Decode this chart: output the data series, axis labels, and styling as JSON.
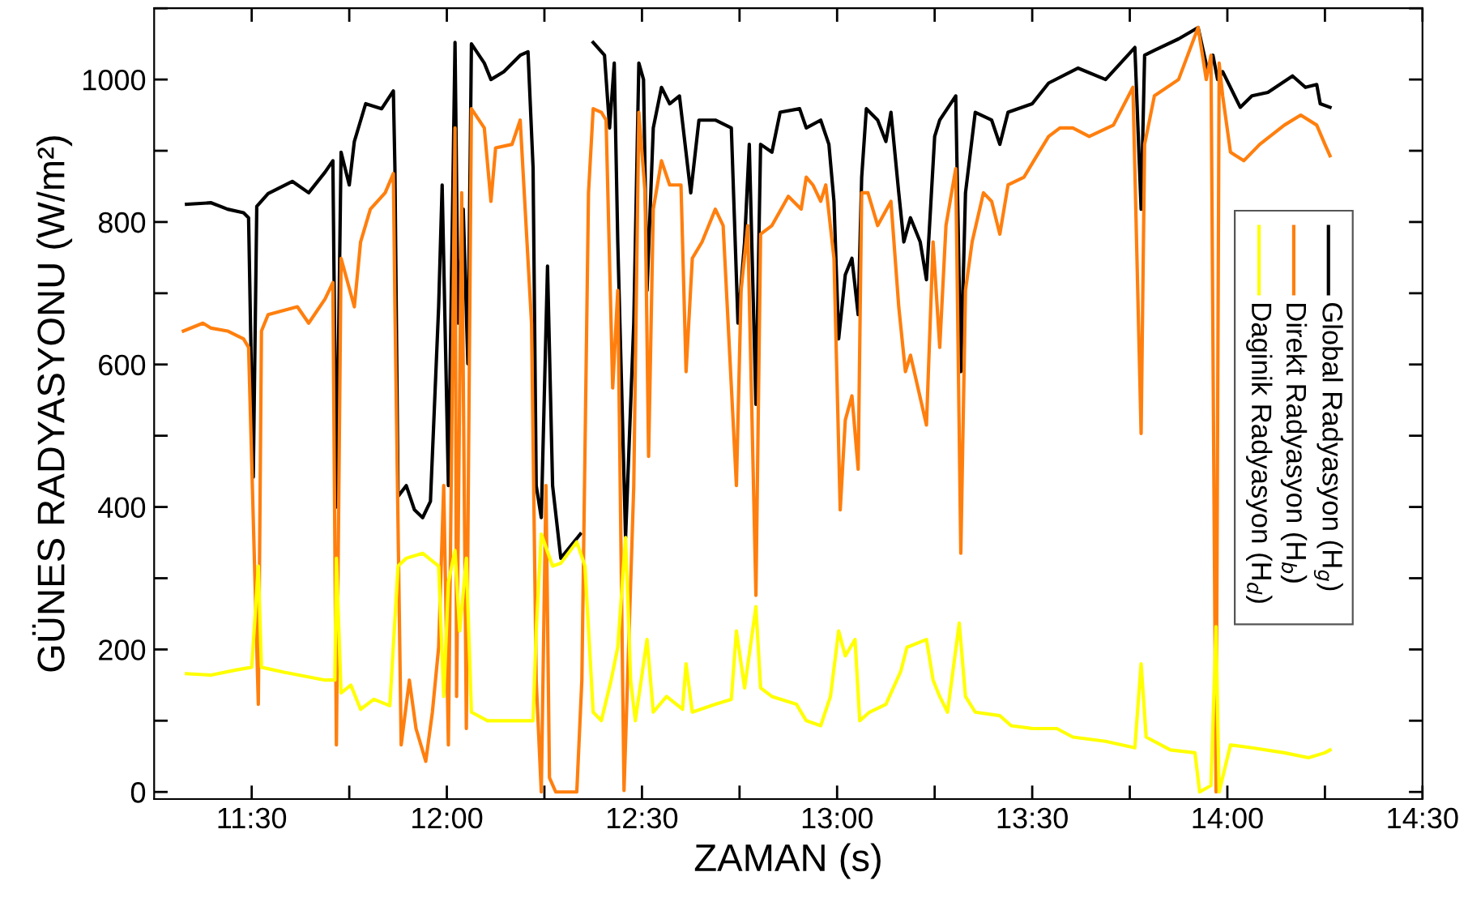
{
  "chart_data": {
    "type": "line",
    "xlabel": "ZAMAN (s)",
    "ylabel": "GÜNES RADYASYONU (W/m²)",
    "xlim": [
      11.25,
      14.5
    ],
    "ylim": [
      -10,
      1100
    ],
    "xticks": [
      {
        "value": 11.5,
        "label": "11:30"
      },
      {
        "value": 11.75,
        "label": null
      },
      {
        "value": 12,
        "label": "12:00"
      },
      {
        "value": 12.25,
        "label": null
      },
      {
        "value": 12.5,
        "label": "12:30"
      },
      {
        "value": 12.75,
        "label": null
      },
      {
        "value": 13,
        "label": "13:00"
      },
      {
        "value": 13.25,
        "label": null
      },
      {
        "value": 13.5,
        "label": "13:30"
      },
      {
        "value": 13.75,
        "label": null
      },
      {
        "value": 14,
        "label": "14:00"
      },
      {
        "value": 14.25,
        "label": null
      },
      {
        "value": 14.5,
        "label": "14:30"
      }
    ],
    "yticks": [
      0,
      {
        "value": 100,
        "label": null
      },
      200,
      {
        "value": 300,
        "label": null
      },
      400,
      {
        "value": 500,
        "label": null
      },
      600,
      {
        "value": 700,
        "label": null
      },
      800,
      {
        "value": 900,
        "label": null
      },
      1000,
      {
        "value": 1100,
        "label": null
      }
    ],
    "grid": false,
    "legend": "right",
    "marker": "none",
    "line_style": "solid",
    "series": [
      {
        "name": "Global Radyasyon (H$_{g}$)",
        "color": "#000000",
        "x": [
          11.333,
          11.396,
          11.438,
          11.479,
          11.492,
          11.504,
          11.513,
          11.542,
          11.604,
          11.646,
          11.688,
          11.708,
          11.717,
          11.729,
          11.75,
          11.763,
          11.792,
          11.833,
          11.863,
          11.867,
          11.875,
          11.896,
          11.917,
          11.938,
          11.958,
          11.979,
          11.988,
          12.004,
          12.021,
          12.029,
          12.042,
          12.054,
          12.063,
          12.096,
          12.113,
          12.146,
          12.188,
          12.208,
          12.221,
          12.229,
          12.242,
          12.258,
          12.271,
          12.292,
          12.342,
          12.354,
          12.375,
          12.404,
          12.417,
          12.429,
          12.438,
          12.458,
          12.479,
          12.492,
          12.504,
          12.513,
          12.529,
          12.55,
          12.571,
          12.596,
          12.625,
          12.646,
          12.688,
          12.729,
          12.746,
          12.763,
          12.775,
          12.792,
          12.804,
          12.833,
          12.854,
          12.904,
          12.921,
          12.958,
          12.979,
          12.992,
          13.004,
          13.021,
          13.038,
          13.054,
          13.063,
          13.075,
          13.104,
          13.125,
          13.138,
          13.158,
          13.171,
          13.188,
          13.213,
          13.229,
          13.25,
          13.263,
          13.304,
          13.317,
          13.329,
          13.354,
          13.396,
          13.417,
          13.438,
          13.5,
          13.542,
          13.617,
          13.688,
          13.763,
          13.779,
          13.788,
          13.813,
          13.875,
          13.925,
          13.95,
          13.963,
          13.975,
          13.988,
          14.033,
          14.063,
          14.104,
          14.167,
          14.2,
          14.229,
          14.238,
          14.263
        ],
        "values": [
          825,
          827,
          818,
          813,
          806,
          442,
          822,
          840,
          857,
          841,
          870,
          886,
          400,
          898,
          852,
          913,
          966,
          959,
          984,
          875,
          415,
          430,
          396,
          385,
          408,
          681,
          852,
          430,
          1052,
          658,
          818,
          601,
          1050,
          1023,
          1000,
          1011,
          1034,
          1039,
          876,
          430,
          385,
          738,
          430,
          328,
          362,
          null,
          1052,
          1034,
          932,
          1023,
          772,
          357,
          658,
          1023,
          1000,
          704,
          932,
          989,
          966,
          977,
          841,
          943,
          943,
          932,
          658,
          772,
          909,
          544,
          909,
          898,
          954,
          959,
          932,
          943,
          909,
          829,
          636,
          726,
          749,
          670,
          863,
          959,
          943,
          913,
          954,
          841,
          772,
          806,
          772,
          719,
          920,
          943,
          977,
          590,
          841,
          954,
          943,
          909,
          954,
          966,
          995,
          1016,
          1000,
          1045,
          818,
          1034,
          1041,
          1057,
          1073,
          1011,
          1034,
          1000,
          1011,
          961,
          977,
          982,
          1005,
          989,
          993,
          966,
          961
        ]
      },
      {
        "name": "Direkt Radyasyon (H$_{b}$)",
        "color": "#ff7f0e",
        "x": [
          11.325,
          11.375,
          11.396,
          11.438,
          11.479,
          11.492,
          11.517,
          11.525,
          11.542,
          11.617,
          11.646,
          11.688,
          11.708,
          11.717,
          11.729,
          11.763,
          11.779,
          11.804,
          11.842,
          11.863,
          11.867,
          11.883,
          11.904,
          11.921,
          11.946,
          11.963,
          11.979,
          11.992,
          12.004,
          12.021,
          12.025,
          12.038,
          12.05,
          12.063,
          12.096,
          12.113,
          12.125,
          12.167,
          12.188,
          12.217,
          12.229,
          12.242,
          12.254,
          12.263,
          12.279,
          12.333,
          12.346,
          12.363,
          12.375,
          12.396,
          12.408,
          12.425,
          12.438,
          12.454,
          12.479,
          12.492,
          12.508,
          12.517,
          12.529,
          12.55,
          12.571,
          12.6,
          12.613,
          12.629,
          12.654,
          12.688,
          12.708,
          12.742,
          12.754,
          12.771,
          12.792,
          12.804,
          12.833,
          12.875,
          12.908,
          12.921,
          12.938,
          12.958,
          12.971,
          12.992,
          13.008,
          13.021,
          13.038,
          13.054,
          13.063,
          13.079,
          13.104,
          13.138,
          13.158,
          13.175,
          13.188,
          13.229,
          13.246,
          13.263,
          13.279,
          13.304,
          13.317,
          13.329,
          13.346,
          13.375,
          13.396,
          13.417,
          13.438,
          13.479,
          13.504,
          13.542,
          13.571,
          13.604,
          13.646,
          13.708,
          13.758,
          13.779,
          13.788,
          13.813,
          13.875,
          13.925,
          13.946,
          13.958,
          13.971,
          13.979,
          13.988,
          14.008,
          14.042,
          14.083,
          14.146,
          14.188,
          14.229,
          14.25,
          14.263
        ],
        "values": [
          647,
          658,
          651,
          647,
          636,
          624,
          123,
          647,
          670,
          681,
          658,
          692,
          715,
          66,
          749,
          681,
          772,
          818,
          841,
          868,
          681,
          66,
          157,
          89,
          43,
          112,
          203,
          430,
          66,
          932,
          134,
          841,
          89,
          959,
          932,
          829,
          904,
          909,
          943,
          658,
          157,
          0,
          430,
          20,
          0,
          0,
          157,
          841,
          959,
          954,
          943,
          567,
          704,
          2,
          430,
          954,
          841,
          471,
          818,
          886,
          852,
          852,
          590,
          749,
          772,
          818,
          795,
          430,
          704,
          795,
          276,
          783,
          795,
          836,
          818,
          863,
          852,
          829,
          852,
          749,
          396,
          522,
          556,
          453,
          841,
          841,
          795,
          829,
          681,
          590,
          613,
          515,
          772,
          624,
          795,
          875,
          335,
          704,
          772,
          841,
          829,
          783,
          852,
          863,
          886,
          920,
          932,
          932,
          920,
          936,
          989,
          503,
          909,
          977,
          1000,
          1073,
          1000,
          1034,
          0,
          1023,
          977,
          898,
          886,
          909,
          936,
          950,
          936,
          909,
          893
        ]
      },
      {
        "name": "Daginik Radyasyon (H$_{d}$)",
        "color": "#ffff00",
        "x": [
          11.333,
          11.396,
          11.458,
          11.5,
          11.517,
          11.525,
          11.583,
          11.688,
          11.713,
          11.717,
          11.729,
          11.754,
          11.779,
          11.813,
          11.854,
          11.875,
          11.896,
          11.938,
          11.979,
          11.992,
          12.004,
          12.021,
          12.033,
          12.05,
          12.063,
          12.104,
          12.221,
          12.229,
          12.242,
          12.271,
          12.292,
          12.333,
          12.354,
          12.375,
          12.396,
          12.421,
          12.438,
          12.458,
          12.471,
          12.483,
          12.513,
          12.529,
          12.563,
          12.604,
          12.613,
          12.629,
          12.688,
          12.729,
          12.742,
          12.763,
          12.792,
          12.804,
          12.833,
          12.896,
          12.921,
          12.958,
          12.983,
          13.004,
          13.021,
          13.046,
          13.058,
          13.083,
          13.125,
          13.163,
          13.179,
          13.229,
          13.246,
          13.263,
          13.283,
          13.313,
          13.329,
          13.354,
          13.417,
          13.446,
          13.5,
          13.563,
          13.604,
          13.688,
          13.763,
          13.779,
          13.792,
          13.854,
          13.917,
          13.929,
          13.958,
          13.971,
          13.979,
          14.008,
          14.063,
          14.146,
          14.208,
          14.25,
          14.263
        ],
        "values": [
          166,
          164,
          171,
          175,
          317,
          175,
          168,
          157,
          157,
          328,
          139,
          150,
          116,
          130,
          121,
          317,
          328,
          335,
          317,
          134,
          294,
          339,
          226,
          328,
          112,
          100,
          100,
          226,
          362,
          317,
          321,
          351,
          317,
          112,
          100,
          157,
          203,
          357,
          157,
          100,
          214,
          112,
          134,
          116,
          180,
          112,
          123,
          130,
          226,
          146,
          260,
          146,
          134,
          123,
          100,
          93,
          134,
          226,
          191,
          214,
          100,
          112,
          123,
          169,
          203,
          214,
          157,
          134,
          112,
          237,
          134,
          112,
          107,
          93,
          89,
          89,
          77,
          71,
          62,
          180,
          77,
          59,
          55,
          0,
          9,
          232,
          0,
          66,
          62,
          55,
          48,
          55,
          59
        ]
      }
    ]
  }
}
